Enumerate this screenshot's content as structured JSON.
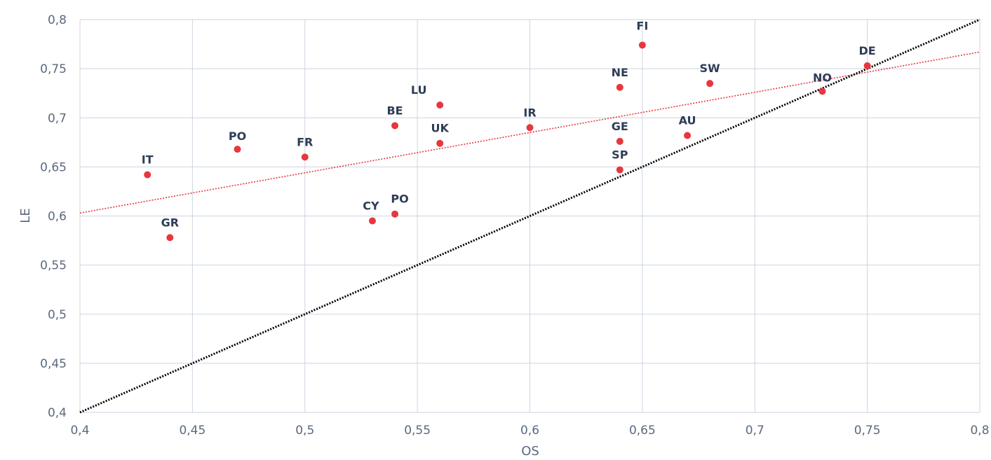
{
  "chart_data": {
    "type": "scatter",
    "title": "",
    "xlabel": "OS",
    "ylabel": "LE",
    "xlim": [
      0.4,
      0.8
    ],
    "ylim": [
      0.4,
      0.8
    ],
    "grid": true,
    "xticks": [
      "0,4",
      "0,45",
      "0,5",
      "0,55",
      "0,6",
      "0,65",
      "0,7",
      "0,75",
      "0,8"
    ],
    "yticks": [
      "0,4",
      "0,45",
      "0,5",
      "0,55",
      "0,6",
      "0,65",
      "0,7",
      "0,75",
      "0,8"
    ],
    "colors": {
      "points": "#e8363f",
      "trendline": "#e8363f",
      "reference_line": "#000000",
      "grid": "#cdd5e0",
      "labels": "#2e3d57",
      "ticks": "#5b6a7d"
    },
    "points": [
      {
        "label": "IT",
        "x": 0.43,
        "y": 0.642
      },
      {
        "label": "GR",
        "x": 0.44,
        "y": 0.578
      },
      {
        "label": "PO",
        "x": 0.47,
        "y": 0.668
      },
      {
        "label": "FR",
        "x": 0.5,
        "y": 0.66
      },
      {
        "label": "CY",
        "x": 0.53,
        "y": 0.595
      },
      {
        "label": "PO",
        "x": 0.54,
        "y": 0.602
      },
      {
        "label": "BE",
        "x": 0.54,
        "y": 0.692
      },
      {
        "label": "LU",
        "x": 0.56,
        "y": 0.713
      },
      {
        "label": "UK",
        "x": 0.56,
        "y": 0.674
      },
      {
        "label": "IR",
        "x": 0.6,
        "y": 0.69
      },
      {
        "label": "NE",
        "x": 0.64,
        "y": 0.731
      },
      {
        "label": "GE",
        "x": 0.64,
        "y": 0.676
      },
      {
        "label": "SP",
        "x": 0.64,
        "y": 0.647
      },
      {
        "label": "FI",
        "x": 0.65,
        "y": 0.774
      },
      {
        "label": "AU",
        "x": 0.67,
        "y": 0.682
      },
      {
        "label": "SW",
        "x": 0.68,
        "y": 0.735
      },
      {
        "label": "NO",
        "x": 0.73,
        "y": 0.727
      },
      {
        "label": "DE",
        "x": 0.75,
        "y": 0.753
      }
    ],
    "trendline": {
      "style": "dotted",
      "x": [
        0.4,
        0.8
      ],
      "y": [
        0.603,
        0.767
      ]
    },
    "reference_line": {
      "style": "dotted",
      "x": [
        0.4,
        0.8
      ],
      "y": [
        0.4,
        0.8
      ]
    }
  }
}
